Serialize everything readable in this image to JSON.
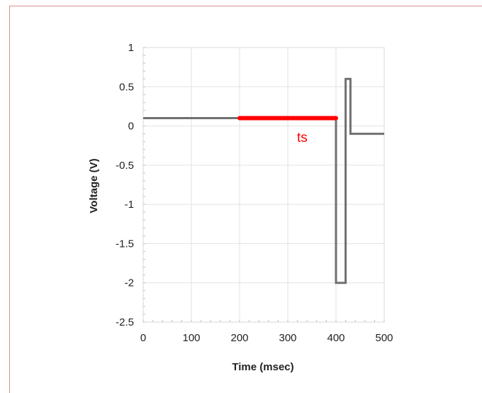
{
  "chart_data": {
    "type": "line",
    "title": "",
    "xlabel": "Time (msec)",
    "ylabel": "Voltage (V)",
    "xlim": [
      0,
      500
    ],
    "ylim": [
      -2.5,
      1
    ],
    "x_ticks": [
      0,
      100,
      200,
      300,
      400,
      500
    ],
    "x_tick_labels": [
      "0",
      "100",
      "200",
      "300",
      "400",
      "500"
    ],
    "y_ticks": [
      1,
      0.5,
      0,
      -0.5,
      -1,
      -1.5,
      -2,
      -2.5
    ],
    "y_tick_labels": [
      "1",
      "0.5",
      "0",
      "-0.5",
      "-1",
      "-1.5",
      "-2",
      "-2.5"
    ],
    "grid": true,
    "series": [
      {
        "color": "#707070",
        "x": [
          0,
          400,
          400,
          420,
          420,
          425,
          425,
          430,
          430,
          500
        ],
        "y": [
          0.1,
          0.1,
          -2,
          -2,
          0.6,
          0.6,
          0.6,
          0.6,
          -0.1,
          -0.1
        ]
      },
      {
        "color": "#ff0000",
        "x": [
          200,
          400
        ],
        "y": [
          0.1,
          0.1
        ]
      }
    ],
    "annotations": [
      {
        "text": "ts",
        "x": 330,
        "y": -0.15,
        "color": "#ff0000"
      }
    ]
  }
}
